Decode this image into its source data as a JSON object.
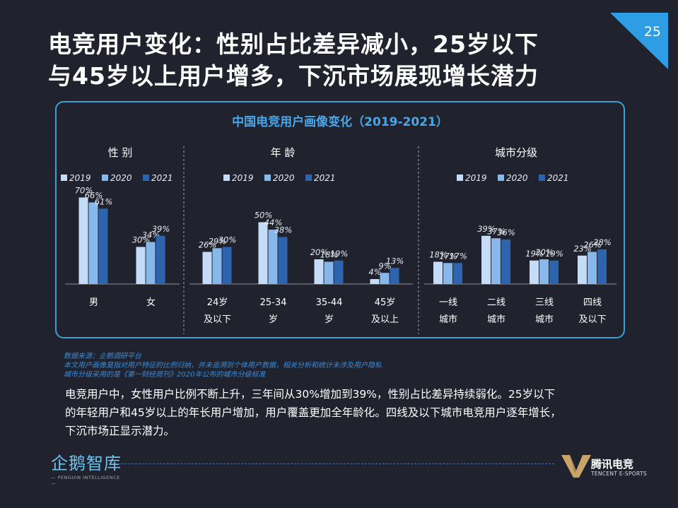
{
  "page": {
    "title_line1": "电竞用户变化：性别占比差异减小，25岁以下",
    "title_line2": "与45岁以上用户增多，下沉市场展现增长潜力",
    "page_number": "25"
  },
  "colors": {
    "accent": "#3aa0d8",
    "title": "#4aa6e8",
    "s2019": "#c4dcf8",
    "s2020": "#86b8ec",
    "s2021": "#2d64b0"
  },
  "chart_data": {
    "type": "bar",
    "title": "中国电竞用户画像变化（2019-2021）",
    "unit": "%",
    "legend": [
      "2019",
      "2020",
      "2021"
    ],
    "groups": [
      {
        "name": "性 别",
        "categories": [
          [
            "男"
          ],
          [
            "女"
          ]
        ],
        "series": [
          {
            "name": "2019",
            "values": [
              70,
              30
            ]
          },
          {
            "name": "2020",
            "values": [
              66,
              34
            ]
          },
          {
            "name": "2021",
            "values": [
              61,
              39
            ]
          }
        ]
      },
      {
        "name": "年 龄",
        "categories": [
          [
            "24岁",
            "及以下"
          ],
          [
            "25-34",
            "岁"
          ],
          [
            "35-44",
            "岁"
          ],
          [
            "45岁",
            "及以上"
          ]
        ],
        "series": [
          {
            "name": "2019",
            "values": [
              26,
              50,
              20,
              4
            ]
          },
          {
            "name": "2020",
            "values": [
              29,
              44,
              18,
              9
            ]
          },
          {
            "name": "2021",
            "values": [
              30,
              38,
              19,
              13
            ]
          }
        ]
      },
      {
        "name": "城市分级",
        "categories": [
          [
            "一线",
            "城市"
          ],
          [
            "二线",
            "城市"
          ],
          [
            "三线",
            "城市"
          ],
          [
            "四线",
            "及以下"
          ]
        ],
        "series": [
          {
            "name": "2019",
            "values": [
              18,
              39,
              19,
              23
            ]
          },
          {
            "name": "2020",
            "values": [
              17,
              37,
              20,
              26
            ]
          },
          {
            "name": "2021",
            "values": [
              17,
              36,
              19,
              28
            ]
          }
        ]
      }
    ]
  },
  "sources": [
    "数据来源：企鹅调研平台",
    "本文用户画像是指对用户特征的比例归纳，并未追溯到个体用户数据，相关分析和统计未涉及用户隐私",
    "城市分级采用的是《第一财经周刊》2020年公布的城市分级标准"
  ],
  "summary": [
    "电竞用户中，女性用户比例不断上升，三年间从30%增加到39%，性别占比差异持续弱化。25岁以下",
    "的年轻用户和45岁以上的年长用户增加，用户覆盖更加全年龄化。四线及以下城市电竞用户逐年增长，",
    "下沉市场正显示潜力。"
  ],
  "logos": {
    "left_name": "企鹅智库",
    "left_sub": "— PENGUIN INTELLIGENCE —",
    "right_name": "腾讯电竞",
    "right_sub": "TENCENT E-SPORTS"
  }
}
